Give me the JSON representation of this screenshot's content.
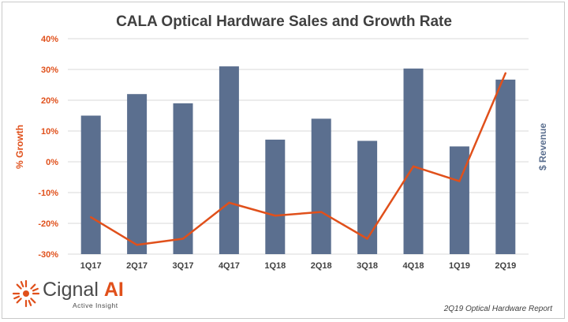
{
  "title": "CALA Optical Hardware Sales and Growth Rate",
  "footer_note": "2Q19 Optical Hardware Report",
  "logo": {
    "name_main": "Cignal",
    "name_ai": "AI",
    "tagline": "Active Insight",
    "icon": "sunburst-icon"
  },
  "colors": {
    "bar": "#5b6f8f",
    "line": "#e0501b",
    "grid": "#d9d9d9",
    "text": "#404040"
  },
  "chart_data": {
    "type": "bar",
    "categories": [
      "1Q17",
      "2Q17",
      "3Q17",
      "4Q17",
      "1Q18",
      "2Q18",
      "3Q18",
      "4Q18",
      "1Q19",
      "2Q19"
    ],
    "y_left": {
      "label": "% Growth",
      "ticks": [
        "40%",
        "30%",
        "20%",
        "10%",
        "0%",
        "-10%",
        "-20%",
        "-30%"
      ],
      "range": [
        -30,
        40
      ]
    },
    "y_right": {
      "label": "$ Revenue",
      "tick_labels_shown": false
    },
    "series": [
      {
        "kind": "bar",
        "axis": "right",
        "values": [
          15,
          22,
          19,
          31,
          7.2,
          14,
          6.8,
          30.3,
          5,
          26.7
        ]
      },
      {
        "kind": "line",
        "axis": "left",
        "values": [
          -18,
          -27,
          -25,
          -13.3,
          -17.5,
          -16.3,
          -25,
          -1.5,
          -6.3,
          28.8
        ]
      }
    ],
    "grid": true,
    "legend": "none"
  }
}
